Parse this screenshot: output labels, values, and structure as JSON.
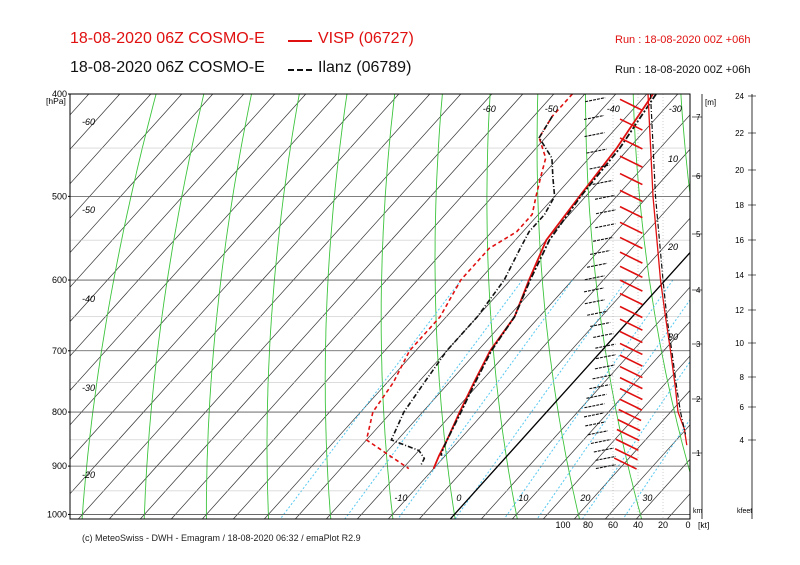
{
  "header": {
    "line1": {
      "model": "18-08-2020 06Z COSMO-E",
      "station": "VISP (06727)",
      "run": "Run : 18-08-2020 00Z +06h",
      "color": "#e01010"
    },
    "line2": {
      "model": "18-08-2020 06Z COSMO-E",
      "station": "Ilanz (06789)",
      "run": "Run : 18-08-2020 00Z +06h",
      "color": "#111111"
    }
  },
  "footer": "(c) MeteoSwiss - DWH - Emagram / 18-08-2020  06:32 / emaPlot R2.9",
  "chart_data": {
    "type": "line",
    "ylabel_units": "[hPa]",
    "pressure_ticks": [
      400,
      500,
      600,
      700,
      800,
      900,
      1000
    ],
    "ylim": [
      400,
      1010
    ],
    "xlim": [
      -60,
      32
    ],
    "isotherm_labels": [
      {
        "t": -60,
        "text": "-60"
      },
      {
        "t": -50,
        "text": "-50"
      },
      {
        "t": -40,
        "text": "-40"
      },
      {
        "t": -30,
        "text": "-30"
      },
      {
        "t": -20,
        "text": "-20"
      },
      {
        "t": -10,
        "text": "-10"
      },
      {
        "t": 0,
        "text": "0"
      },
      {
        "t": 10,
        "text": "10"
      },
      {
        "t": 20,
        "text": "20"
      },
      {
        "t": 30,
        "text": "30"
      }
    ],
    "left_labels": [
      "-60",
      "-50",
      "-40",
      "-30",
      "-20"
    ],
    "km_axis": {
      "unit": "[m]",
      "bottom_label": "km",
      "ticks": [
        1,
        2,
        3,
        4,
        5,
        6,
        7
      ]
    },
    "kfeet_axis": {
      "bottom_label": "kfeet",
      "ticks": [
        4,
        6,
        8,
        10,
        12,
        14,
        16,
        18,
        20,
        22,
        24
      ]
    },
    "wind_axis": {
      "unit": "[kt]",
      "ticks": [
        100,
        80,
        60,
        40,
        20,
        0
      ]
    },
    "wind_speed_labels": [
      "10",
      "20",
      "30"
    ],
    "series": [
      {
        "name": "VISP (06727)",
        "color": "#e01010",
        "temperature": [
          [
            400,
            -29
          ],
          [
            450,
            -27
          ],
          [
            500,
            -26
          ],
          [
            550,
            -25
          ],
          [
            600,
            -22
          ],
          [
            650,
            -19
          ],
          [
            700,
            -18
          ],
          [
            750,
            -16
          ],
          [
            800,
            -14
          ],
          [
            850,
            -12
          ],
          [
            880,
            -11
          ],
          [
            905,
            -10
          ]
        ],
        "dewpoint": [
          [
            400,
            -42
          ],
          [
            420,
            -42
          ],
          [
            440,
            -41
          ],
          [
            460,
            -37
          ],
          [
            480,
            -35
          ],
          [
            500,
            -33
          ],
          [
            520,
            -31
          ],
          [
            540,
            -31
          ],
          [
            560,
            -33
          ],
          [
            600,
            -33
          ],
          [
            650,
            -31
          ],
          [
            700,
            -31
          ],
          [
            750,
            -29
          ],
          [
            800,
            -28
          ],
          [
            850,
            -25
          ],
          [
            905,
            -14
          ]
        ]
      },
      {
        "name": "Ilanz (06789)",
        "color": "#111111",
        "temperature": [
          [
            400,
            -28.5
          ],
          [
            450,
            -26.5
          ],
          [
            500,
            -25.8
          ],
          [
            550,
            -24.5
          ],
          [
            600,
            -21.8
          ],
          [
            650,
            -19
          ],
          [
            700,
            -17.8
          ],
          [
            750,
            -15.8
          ],
          [
            800,
            -13.8
          ],
          [
            850,
            -12
          ],
          [
            875,
            -11
          ],
          [
            880,
            -10.6
          ]
        ],
        "dewpoint": [
          [
            420,
            -42
          ],
          [
            440,
            -41
          ],
          [
            460,
            -36
          ],
          [
            480,
            -33
          ],
          [
            500,
            -30
          ],
          [
            520,
            -29
          ],
          [
            540,
            -29
          ],
          [
            560,
            -28
          ],
          [
            600,
            -26
          ],
          [
            650,
            -25
          ],
          [
            700,
            -25
          ],
          [
            750,
            -24
          ],
          [
            800,
            -23
          ],
          [
            850,
            -21
          ],
          [
            870,
            -15
          ],
          [
            885,
            -13
          ],
          [
            900,
            -12.5
          ]
        ]
      }
    ]
  }
}
